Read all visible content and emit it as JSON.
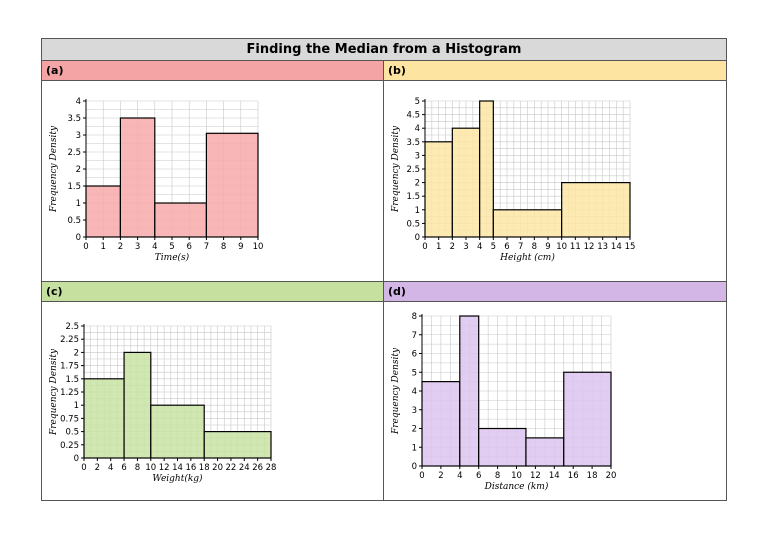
{
  "worksheet": {
    "title": "Finding the Median from a Histogram"
  },
  "panels": [
    {
      "label": "(a)",
      "header_color": "#f4a4a4"
    },
    {
      "label": "(b)",
      "header_color": "#fde4a0"
    },
    {
      "label": "(c)",
      "header_color": "#c6e0a0"
    },
    {
      "label": "(d)",
      "header_color": "#d4b6e6"
    }
  ],
  "chart_data": [
    {
      "type": "bar",
      "histogram": true,
      "bar_color": "#f7a9a9",
      "xlabel": "Time(s)",
      "ylabel": "Frequency Density",
      "xlim": [
        0,
        10
      ],
      "ylim": [
        0,
        4
      ],
      "x_minor": 1,
      "y_minor": 0.25,
      "xticks": [
        0,
        1,
        2,
        3,
        4,
        5,
        6,
        7,
        8,
        9,
        10
      ],
      "yticks": [
        0,
        0.5,
        1,
        1.5,
        2,
        2.5,
        3,
        3.5,
        4
      ],
      "ytick_labels": [
        "0",
        "0.5",
        "1",
        "1.5",
        "2",
        "2.5",
        "3",
        "3.5",
        "4"
      ],
      "bars": [
        {
          "x0": 0,
          "x1": 2,
          "value": 1.5
        },
        {
          "x0": 2,
          "x1": 4,
          "value": 3.5
        },
        {
          "x0": 4,
          "x1": 7,
          "value": 1
        },
        {
          "x0": 7,
          "x1": 10,
          "value": 3.05
        }
      ],
      "grid": true
    },
    {
      "type": "bar",
      "histogram": true,
      "bar_color": "#fde6a6",
      "xlabel": "Height (cm)",
      "ylabel": "Frequency Density",
      "xlim": [
        0,
        15
      ],
      "ylim": [
        0,
        5
      ],
      "x_minor": 0.5,
      "y_minor": 0.25,
      "xticks": [
        0,
        1,
        2,
        3,
        4,
        5,
        6,
        7,
        8,
        9,
        10,
        11,
        12,
        13,
        14,
        15
      ],
      "yticks": [
        0,
        0.5,
        1,
        1.5,
        2,
        2.5,
        3,
        3.5,
        4,
        4.5,
        5
      ],
      "ytick_labels": [
        "0",
        "0.5",
        "1",
        "1.5",
        "2",
        "2.5",
        "3",
        "3.5",
        "4",
        "4.5",
        "5"
      ],
      "bars": [
        {
          "x0": 0,
          "x1": 2,
          "value": 3.5
        },
        {
          "x0": 2,
          "x1": 4,
          "value": 4
        },
        {
          "x0": 4,
          "x1": 5,
          "value": 5
        },
        {
          "x0": 5,
          "x1": 10,
          "value": 1
        },
        {
          "x0": 10,
          "x1": 15,
          "value": 2
        }
      ],
      "grid": true
    },
    {
      "type": "bar",
      "histogram": true,
      "bar_color": "#c9e3a4",
      "xlabel": "Weight(kg)",
      "ylabel": "Frequency Density",
      "xlim": [
        0,
        28
      ],
      "ylim": [
        0,
        2.5
      ],
      "x_minor": 1,
      "y_minor": 0.125,
      "xticks": [
        0,
        2,
        4,
        6,
        8,
        10,
        12,
        14,
        16,
        18,
        20,
        22,
        24,
        26,
        28
      ],
      "yticks": [
        0,
        0.25,
        0.5,
        0.75,
        1,
        1.25,
        1.5,
        1.75,
        2,
        2.25,
        2.5
      ],
      "ytick_labels": [
        "0",
        "0.25",
        "0.5",
        "0.75",
        "1",
        "1.25",
        "1.5",
        "1.75",
        "2",
        "2.25",
        "2.5"
      ],
      "bars": [
        {
          "x0": 0,
          "x1": 6,
          "value": 1.5
        },
        {
          "x0": 6,
          "x1": 10,
          "value": 2
        },
        {
          "x0": 10,
          "x1": 18,
          "value": 1
        },
        {
          "x0": 18,
          "x1": 28,
          "value": 0.5
        }
      ],
      "grid": true
    },
    {
      "type": "bar",
      "histogram": true,
      "bar_color": "#dcc4ee",
      "xlabel": "Distance (km)",
      "ylabel": "Frequency Density",
      "xlim": [
        0,
        20
      ],
      "ylim": [
        0,
        8
      ],
      "x_minor": 1,
      "y_minor": 0.5,
      "xticks": [
        0,
        2,
        4,
        6,
        8,
        10,
        12,
        14,
        16,
        18,
        20
      ],
      "yticks": [
        0,
        1,
        2,
        3,
        4,
        5,
        6,
        7,
        8
      ],
      "ytick_labels": [
        "0",
        "1",
        "2",
        "3",
        "4",
        "5",
        "6",
        "7",
        "8"
      ],
      "bars": [
        {
          "x0": 0,
          "x1": 4,
          "value": 4.5
        },
        {
          "x0": 4,
          "x1": 6,
          "value": 8
        },
        {
          "x0": 6,
          "x1": 11,
          "value": 2
        },
        {
          "x0": 11,
          "x1": 15,
          "value": 1.5
        },
        {
          "x0": 15,
          "x1": 20,
          "value": 5
        }
      ],
      "grid": true
    }
  ]
}
